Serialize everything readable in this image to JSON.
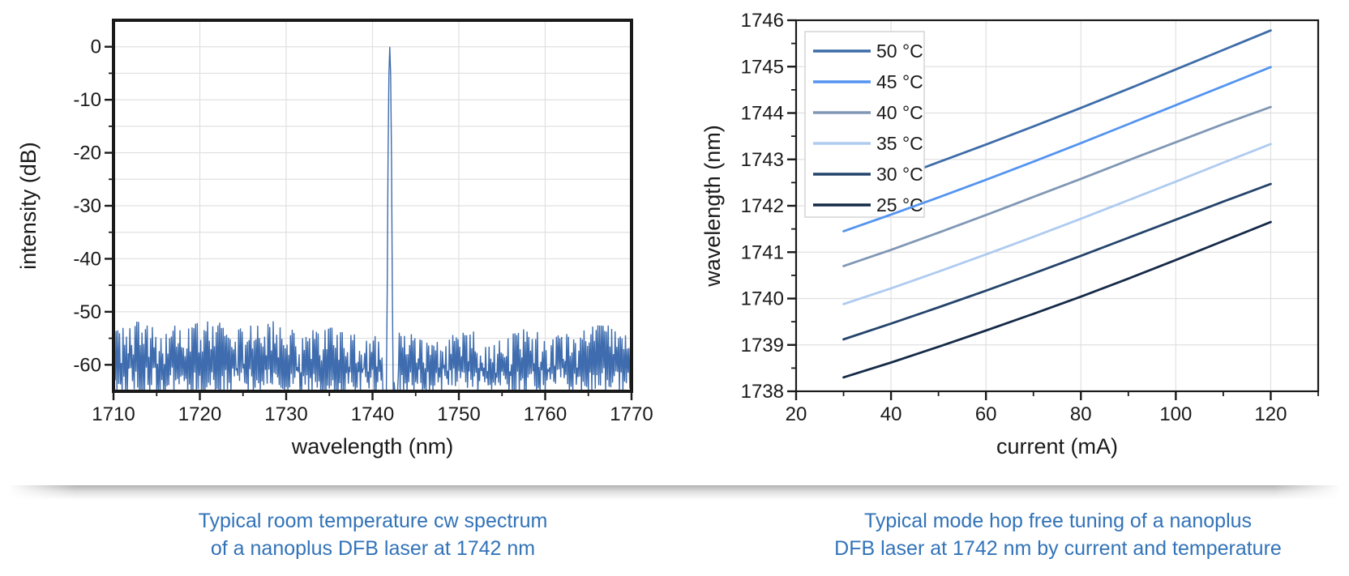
{
  "page": {
    "background": "#ffffff",
    "caption_color": "#3273b8",
    "axis_color": "#1a1a1a",
    "grid_color": "#e0e0e0"
  },
  "chart_data": [
    {
      "id": "spectrum",
      "type": "line",
      "title": "",
      "xlabel": "wavelength (nm)",
      "ylabel": "intensity (dB)",
      "xlim": [
        1710,
        1770
      ],
      "ylim": [
        -65,
        5
      ],
      "grid": "on",
      "x_major_ticks": [
        1710,
        1720,
        1730,
        1740,
        1750,
        1760,
        1770
      ],
      "x_minor_ticks": [
        1715,
        1725,
        1735,
        1745,
        1755,
        1765
      ],
      "y_major_ticks": [
        0,
        -10,
        -20,
        -30,
        -40,
        -50,
        -60
      ],
      "y_minor_ticks": [
        -5,
        -15,
        -25,
        -35,
        -45,
        -55
      ],
      "grid_x": [
        1720,
        1730,
        1740,
        1750,
        1760
      ],
      "grid_y": [
        0,
        -5,
        -10,
        -15,
        -20,
        -25,
        -30,
        -35,
        -40,
        -45,
        -50,
        -55,
        -60
      ],
      "line_color": "#3e6cae",
      "peak": {
        "center_nm": 1742.0,
        "top_db": 0,
        "parabola_k": 520,
        "right_tail_start_nm": 1742.3
      },
      "noise_floor": {
        "seed": 7,
        "points": 600,
        "envelope_top_db": -53.6,
        "crest_depth_db": 7,
        "valley_db_min": -66.5,
        "valley_db_max": -60.5,
        "stopband_nm": [
          1741.15,
          1742.95
        ],
        "clip_db": -65.15
      },
      "caption": [
        "Typical room temperature cw spectrum",
        "of a nanoplus DFB laser at 1742 nm"
      ]
    },
    {
      "id": "tuning",
      "type": "line",
      "title": "",
      "xlabel": "current (mA)",
      "ylabel": "wavelength (nm)",
      "xlim": [
        20,
        130
      ],
      "ylim": [
        1738,
        1746
      ],
      "grid": "on",
      "x_major_ticks": [
        20,
        40,
        60,
        80,
        100,
        120
      ],
      "x_minor_ticks": [
        30,
        50,
        70,
        90,
        110,
        130
      ],
      "y_major_ticks": [
        1738,
        1739,
        1740,
        1741,
        1742,
        1743,
        1744,
        1745,
        1746
      ],
      "y_minor_ticks": [
        1738.5,
        1739.5,
        1740.5,
        1741.5,
        1742.5,
        1743.5,
        1744.5,
        1745.5
      ],
      "grid_x": [
        40,
        60,
        80,
        100,
        120
      ],
      "grid_y": [
        1739,
        1740,
        1741,
        1742,
        1743,
        1744,
        1745
      ],
      "x": [
        30,
        40,
        50,
        60,
        70,
        80,
        90,
        100,
        110,
        120
      ],
      "series": [
        {
          "label": "50 °C",
          "color": "#3d6ca8",
          "above_legend": false,
          "values": [
            1742.2,
            1742.56,
            1742.94,
            1743.32,
            1743.71,
            1744.11,
            1744.52,
            1744.94,
            1745.36,
            1745.78
          ]
        },
        {
          "label": "45 °C",
          "color": "#5494f0",
          "above_legend": true,
          "values": [
            1741.45,
            1741.81,
            1742.18,
            1742.56,
            1742.95,
            1743.35,
            1743.76,
            1744.17,
            1744.58,
            1744.99
          ]
        },
        {
          "label": "40 °C",
          "color": "#8097b5",
          "above_legend": false,
          "values": [
            1740.7,
            1741.05,
            1741.42,
            1741.8,
            1742.19,
            1742.58,
            1742.98,
            1743.37,
            1743.76,
            1744.13
          ]
        },
        {
          "label": "35 °C",
          "color": "#aecbf0",
          "above_legend": false,
          "values": [
            1739.88,
            1740.22,
            1740.58,
            1740.95,
            1741.33,
            1741.72,
            1742.12,
            1742.52,
            1742.93,
            1743.33
          ]
        },
        {
          "label": "30 °C",
          "color": "#24436b",
          "above_legend": false,
          "values": [
            1739.12,
            1739.46,
            1739.81,
            1740.17,
            1740.54,
            1740.92,
            1741.31,
            1741.7,
            1742.09,
            1742.47
          ]
        },
        {
          "label": "25 °C",
          "color": "#152a47",
          "above_legend": false,
          "values": [
            1738.3,
            1738.62,
            1738.96,
            1739.31,
            1739.67,
            1740.04,
            1740.43,
            1740.83,
            1741.24,
            1741.65
          ]
        }
      ],
      "legend": {
        "position": "top-left",
        "border_color": "#d4d4d4",
        "fill": "#ffffff"
      },
      "caption": [
        "Typical mode hop free tuning of a nanoplus",
        "DFB laser at 1742 nm by current and temperature"
      ]
    }
  ]
}
